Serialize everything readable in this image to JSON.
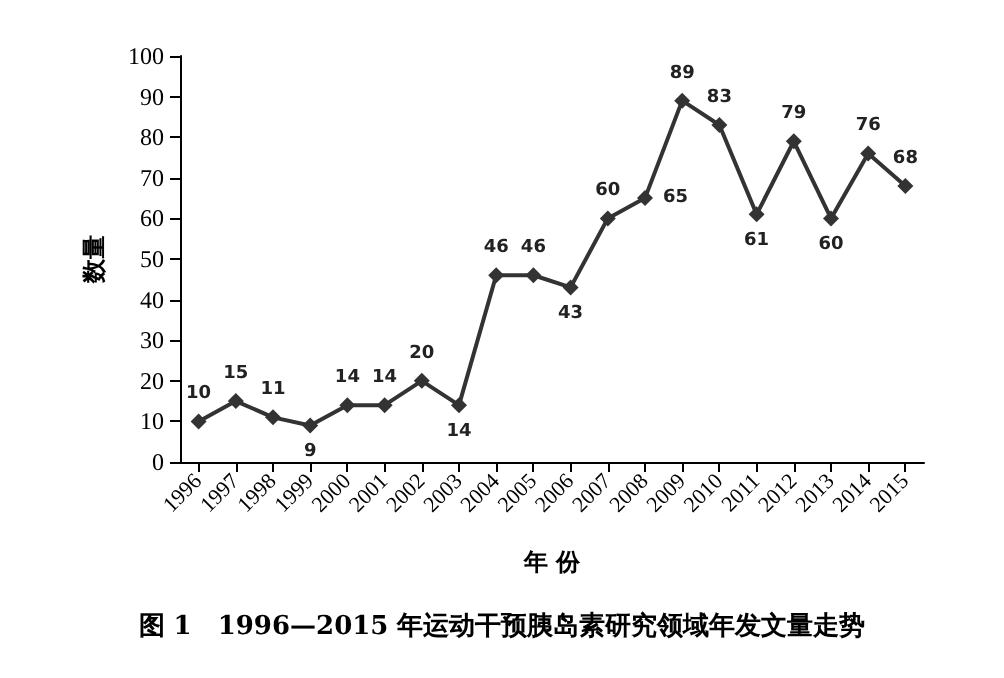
{
  "chart_data": {
    "type": "line",
    "title": "图 1　1996—2015 年运动干预胰岛素研究领域年发文量走势",
    "xlabel": "年 份",
    "ylabel": "数量",
    "categories": [
      "1996",
      "1997",
      "1998",
      "1999",
      "2000",
      "2001",
      "2002",
      "2003",
      "2004",
      "2005",
      "2006",
      "2007",
      "2008",
      "2009",
      "2010",
      "2011",
      "2012",
      "2013",
      "2014",
      "2015"
    ],
    "series": [
      {
        "color": "#333333",
        "values": [
          10,
          15,
          11,
          9,
          14,
          14,
          20,
          14,
          46,
          46,
          43,
          60,
          65,
          89,
          83,
          61,
          79,
          60,
          76,
          68
        ]
      }
    ],
    "ylim": [
      0,
      100
    ],
    "yticks": [
      0,
      10,
      20,
      30,
      40,
      50,
      60,
      70,
      80,
      90,
      100
    ],
    "grid": false,
    "marker": "diamond",
    "line_style": "solid",
    "data_labels": true
  }
}
